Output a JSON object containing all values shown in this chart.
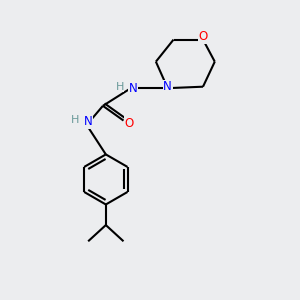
{
  "background_color": "#ecedef",
  "bond_color": "#000000",
  "N_color": "#0000ff",
  "O_color": "#ff0000",
  "H_color": "#6a9a9a",
  "line_width": 1.5,
  "figsize": [
    3.0,
    3.0
  ],
  "dpi": 100,
  "xlim": [
    0,
    10
  ],
  "ylim": [
    0,
    10
  ]
}
